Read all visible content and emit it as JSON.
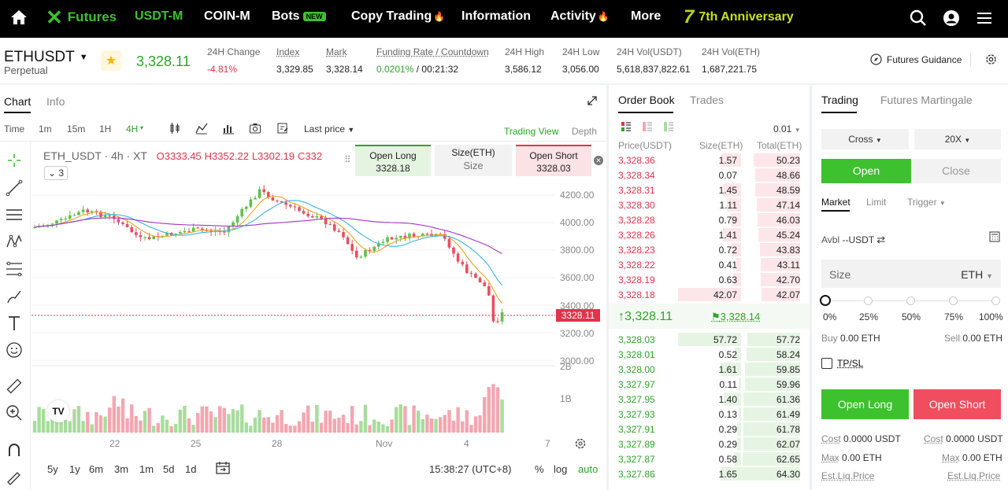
{
  "nav": {
    "brand": "Futures",
    "items": [
      {
        "label": "USDT-M",
        "active": true
      },
      {
        "label": "COIN-M"
      },
      {
        "label": "Bots",
        "badge": "NEW"
      },
      {
        "label": "Copy Trading",
        "hot": true
      },
      {
        "label": "Information"
      },
      {
        "label": "Activity",
        "hot": true
      },
      {
        "label": "More"
      }
    ],
    "anniversary_num": "7",
    "anniversary": "7th Anniversary",
    "accent": "#3ec12e"
  },
  "ticker": {
    "symbol": "ETHUSDT",
    "type": "Perpetual",
    "last_price": "3,328.11",
    "stats": [
      {
        "label": "24H Change",
        "value": "-4.81%",
        "down": true
      },
      {
        "label": "Index",
        "value": "3,329.85",
        "dotted": true
      },
      {
        "label": "Mark",
        "value": "3,328.14",
        "dotted": true
      },
      {
        "label": "Funding Rate / Countdown",
        "rate": "0.0201%",
        "sep": " / ",
        "countdown": "00:21:32",
        "dotted": true
      },
      {
        "label": "24H High",
        "value": "3,586.12"
      },
      {
        "label": "24H Low",
        "value": "3,056.00"
      },
      {
        "label": "24H Vol(USDT)",
        "value": "5,618,837,822.61"
      },
      {
        "label": "24H Vol(ETH)",
        "value": "1,687,221.75"
      }
    ],
    "guidance": "Futures Guidance"
  },
  "chart": {
    "tabs": [
      "Chart",
      "Info"
    ],
    "timeframes": [
      "Time",
      "1m",
      "15m",
      "1H",
      "4H"
    ],
    "active_timeframe": "4H",
    "price_type": "Last price",
    "trading_view": "Trading View",
    "depth": "Depth",
    "legend_symbol": "ETH_USDT · 4h · XT",
    "legend_o": "O3333.45",
    "legend_h": "H3352.22",
    "legend_l": "L3302.19",
    "legend_c": "C332",
    "indicator_count": "3",
    "open_long_label": "Open Long",
    "open_long_price": "3328.18",
    "size_label": "Size(ETH)",
    "size_placeholder": "Size",
    "open_short_label": "Open Short",
    "open_short_price": "3328.03",
    "price_axis": [
      "4200.00",
      "4000.00",
      "3800.00",
      "3600.00",
      "3400.00",
      "3200.00",
      "3000.00"
    ],
    "vol_axis": [
      "2B",
      "1B"
    ],
    "price_tag": "3328.11",
    "x_axis": [
      "22",
      "25",
      "28",
      "Nov",
      "4",
      "7"
    ],
    "ranges": [
      "5y",
      "1y",
      "6m",
      "3m",
      "1m",
      "5d",
      "1d"
    ],
    "clock": "15:38:27 (UTC+8)",
    "pct": "%",
    "log": "log",
    "auto": "auto",
    "tv_logo": "TV"
  },
  "orderbook": {
    "tabs": [
      "Order Book",
      "Trades"
    ],
    "precision": "0.01",
    "headers": [
      "Price(USDT)",
      "Size(ETH)",
      "Total(ETH)"
    ],
    "asks": [
      {
        "price": "3,328.36",
        "size": "1.57",
        "total": "50.23"
      },
      {
        "price": "3,328.34",
        "size": "0.07",
        "total": "48.66"
      },
      {
        "price": "3,328.31",
        "size": "1.45",
        "total": "48.59"
      },
      {
        "price": "3,328.30",
        "size": "1.11",
        "total": "47.14"
      },
      {
        "price": "3,328.28",
        "size": "0.79",
        "total": "46.03"
      },
      {
        "price": "3,328.26",
        "size": "1.41",
        "total": "45.24"
      },
      {
        "price": "3,328.23",
        "size": "0.72",
        "total": "43.83"
      },
      {
        "price": "3,328.22",
        "size": "0.41",
        "total": "43.11"
      },
      {
        "price": "3,328.19",
        "size": "0.63",
        "total": "42.70"
      },
      {
        "price": "3,328.18",
        "size": "42.07",
        "total": "42.07"
      }
    ],
    "mid_price": "3,328.11",
    "mark_price": "3,328.14",
    "bids": [
      {
        "price": "3,328.03",
        "size": "57.72",
        "total": "57.72"
      },
      {
        "price": "3,328.01",
        "size": "0.52",
        "total": "58.24"
      },
      {
        "price": "3,328.00",
        "size": "1.61",
        "total": "59.85"
      },
      {
        "price": "3,327.97",
        "size": "0.11",
        "total": "59.96"
      },
      {
        "price": "3,327.95",
        "size": "1.40",
        "total": "61.36"
      },
      {
        "price": "3,327.93",
        "size": "0.13",
        "total": "61.49"
      },
      {
        "price": "3,327.91",
        "size": "0.29",
        "total": "61.78"
      },
      {
        "price": "3,327.89",
        "size": "0.29",
        "total": "62.07"
      },
      {
        "price": "3,327.87",
        "size": "0.58",
        "total": "62.65"
      },
      {
        "price": "3,327.86",
        "size": "1.65",
        "total": "64.30"
      }
    ],
    "ask_color": "#e0344b",
    "bid_color": "#2fa42a"
  },
  "trading": {
    "tabs": [
      "Trading",
      "Futures Martingale"
    ],
    "margin_mode": "Cross",
    "leverage": "20X",
    "open": "Open",
    "close": "Close",
    "order_types": [
      "Market",
      "Limit",
      "Trigger"
    ],
    "avbl_label": "Avbl",
    "avbl_value": "--USDT",
    "size_label": "Size",
    "size_unit": "ETH",
    "percents": [
      "0%",
      "25%",
      "50%",
      "75%",
      "100%"
    ],
    "buy_label": "Buy",
    "buy_value": "0.00 ETH",
    "sell_label": "Sell",
    "sell_value": "0.00 ETH",
    "tpsl": "TP/SL",
    "open_long": "Open Long",
    "open_short": "Open Short",
    "cost_label": "Cost",
    "cost_long": "0.0000 USDT",
    "cost_short": "0.0000 USDT",
    "max_label": "Max",
    "max_long": "0.00 ETH",
    "max_short": "0.00 ETH",
    "liq_label": "Est.Liq.Price"
  }
}
